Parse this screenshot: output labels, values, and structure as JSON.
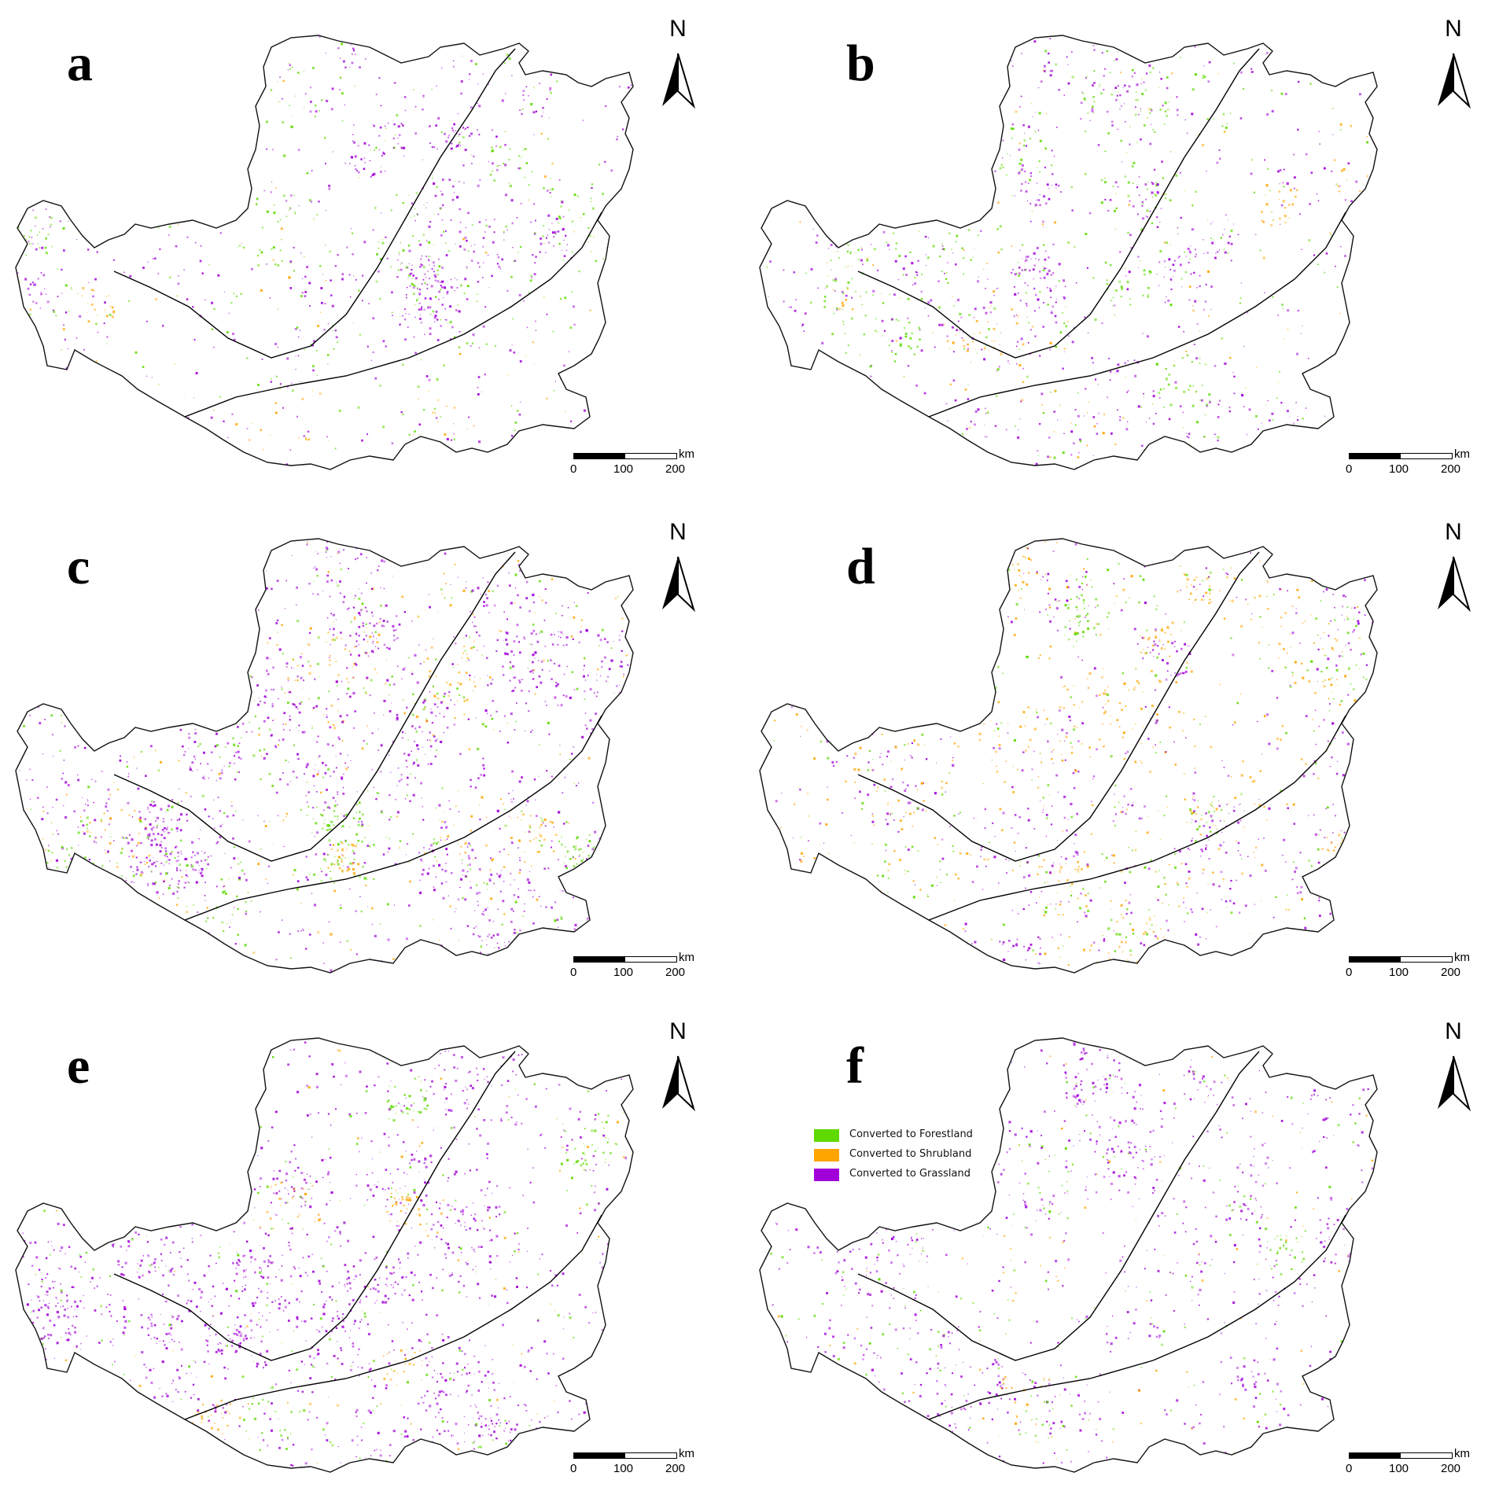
{
  "panels": [
    {
      "letter": "a",
      "palette": {
        "forest": 0.3,
        "shrub": 0.08,
        "grass": 0.55,
        "intensity": 0.55
      }
    },
    {
      "letter": "b",
      "palette": {
        "forest": 0.25,
        "shrub": 0.15,
        "grass": 0.6,
        "intensity": 0.6
      }
    },
    {
      "letter": "c",
      "palette": {
        "forest": 0.15,
        "shrub": 0.2,
        "grass": 0.75,
        "intensity": 0.95
      }
    },
    {
      "letter": "d",
      "palette": {
        "forest": 0.15,
        "shrub": 0.45,
        "grass": 0.45,
        "intensity": 0.7
      }
    },
    {
      "letter": "e",
      "palette": {
        "forest": 0.15,
        "shrub": 0.1,
        "grass": 0.8,
        "intensity": 0.85
      }
    },
    {
      "letter": "f",
      "palette": {
        "forest": 0.2,
        "shrub": 0.15,
        "grass": 0.65,
        "intensity": 0.55
      }
    }
  ],
  "north_arrow": {
    "label": "N",
    "icon": "north-arrow-icon"
  },
  "scale_bar": {
    "unit": "km",
    "ticks": [
      "0",
      "100",
      "200"
    ]
  },
  "legend": {
    "items": [
      {
        "label": "Converted to Forestland",
        "color": "#5fd900"
      },
      {
        "label": "Converted to Shrubland",
        "color": "#ffa500"
      },
      {
        "label": "Converted to Grassland",
        "color": "#a100d8"
      }
    ]
  },
  "colors": {
    "forest": "#5fd900",
    "shrub": "#ffa500",
    "grass": "#a100d8",
    "outline": "#111111"
  }
}
